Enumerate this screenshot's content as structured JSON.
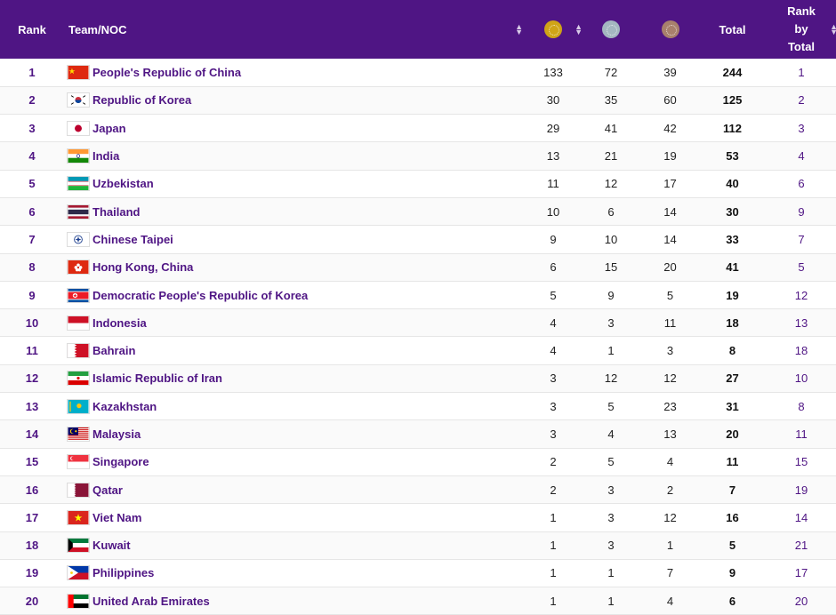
{
  "headers": {
    "rank": "Rank",
    "team": "Team/NOC",
    "total": "Total",
    "rank_by_total_1": "Rank",
    "rank_by_total_2": "by",
    "rank_by_total_3": "Total"
  },
  "medal_colors": {
    "gold": "#cfa417",
    "silver": "#a4b6c0",
    "bronze": "#a8806c"
  },
  "accent": "#4f1584",
  "rows": [
    {
      "rank": "1",
      "team": "People's Republic of China",
      "gold": "133",
      "silver": "72",
      "bronze": "39",
      "total": "244",
      "rank_total": "1"
    },
    {
      "rank": "2",
      "team": "Republic of Korea",
      "gold": "30",
      "silver": "35",
      "bronze": "60",
      "total": "125",
      "rank_total": "2"
    },
    {
      "rank": "3",
      "team": "Japan",
      "gold": "29",
      "silver": "41",
      "bronze": "42",
      "total": "112",
      "rank_total": "3"
    },
    {
      "rank": "4",
      "team": "India",
      "gold": "13",
      "silver": "21",
      "bronze": "19",
      "total": "53",
      "rank_total": "4"
    },
    {
      "rank": "5",
      "team": "Uzbekistan",
      "gold": "11",
      "silver": "12",
      "bronze": "17",
      "total": "40",
      "rank_total": "6"
    },
    {
      "rank": "6",
      "team": "Thailand",
      "gold": "10",
      "silver": "6",
      "bronze": "14",
      "total": "30",
      "rank_total": "9"
    },
    {
      "rank": "7",
      "team": "Chinese Taipei",
      "gold": "9",
      "silver": "10",
      "bronze": "14",
      "total": "33",
      "rank_total": "7"
    },
    {
      "rank": "8",
      "team": "Hong Kong, China",
      "gold": "6",
      "silver": "15",
      "bronze": "20",
      "total": "41",
      "rank_total": "5"
    },
    {
      "rank": "9",
      "team": "Democratic People's Republic of Korea",
      "gold": "5",
      "silver": "9",
      "bronze": "5",
      "total": "19",
      "rank_total": "12"
    },
    {
      "rank": "10",
      "team": "Indonesia",
      "gold": "4",
      "silver": "3",
      "bronze": "11",
      "total": "18",
      "rank_total": "13"
    },
    {
      "rank": "11",
      "team": "Bahrain",
      "gold": "4",
      "silver": "1",
      "bronze": "3",
      "total": "8",
      "rank_total": "18"
    },
    {
      "rank": "12",
      "team": "Islamic Republic of Iran",
      "gold": "3",
      "silver": "12",
      "bronze": "12",
      "total": "27",
      "rank_total": "10"
    },
    {
      "rank": "13",
      "team": "Kazakhstan",
      "gold": "3",
      "silver": "5",
      "bronze": "23",
      "total": "31",
      "rank_total": "8"
    },
    {
      "rank": "14",
      "team": "Malaysia",
      "gold": "3",
      "silver": "4",
      "bronze": "13",
      "total": "20",
      "rank_total": "11"
    },
    {
      "rank": "15",
      "team": "Singapore",
      "gold": "2",
      "silver": "5",
      "bronze": "4",
      "total": "11",
      "rank_total": "15"
    },
    {
      "rank": "16",
      "team": "Qatar",
      "gold": "2",
      "silver": "3",
      "bronze": "2",
      "total": "7",
      "rank_total": "19"
    },
    {
      "rank": "17",
      "team": "Viet Nam",
      "gold": "1",
      "silver": "3",
      "bronze": "12",
      "total": "16",
      "rank_total": "14"
    },
    {
      "rank": "18",
      "team": "Kuwait",
      "gold": "1",
      "silver": "3",
      "bronze": "1",
      "total": "5",
      "rank_total": "21"
    },
    {
      "rank": "19",
      "team": "Philippines",
      "gold": "1",
      "silver": "1",
      "bronze": "7",
      "total": "9",
      "rank_total": "17"
    },
    {
      "rank": "20",
      "team": "United Arab Emirates",
      "gold": "1",
      "silver": "1",
      "bronze": "4",
      "total": "6",
      "rank_total": "20"
    }
  ]
}
